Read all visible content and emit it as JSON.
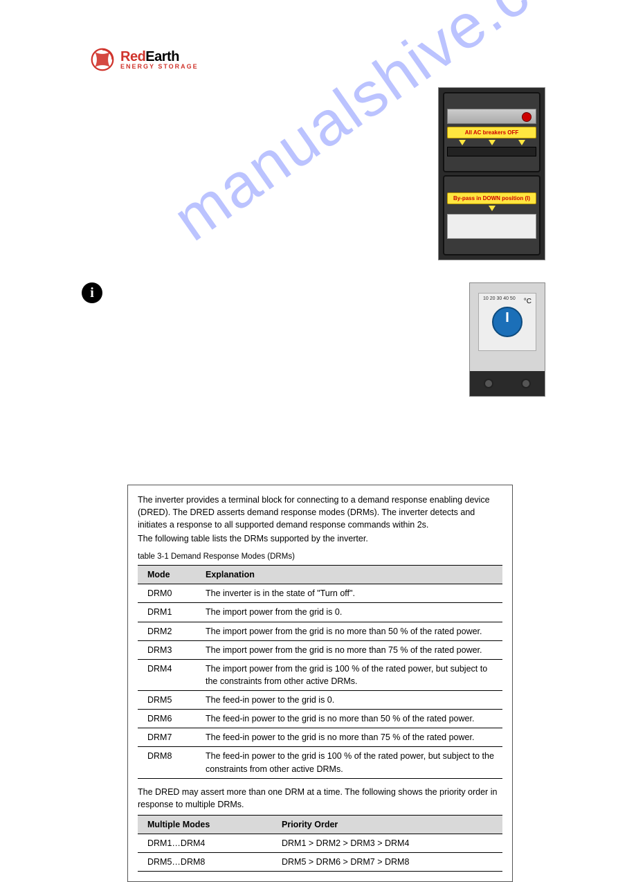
{
  "logo": {
    "brand_left": "Red",
    "brand_right": "Earth",
    "tagline": "ENERGY STORAGE"
  },
  "breaker_labels": {
    "top": "All AC breakers OFF",
    "bottom": "By-pass in DOWN position (I)"
  },
  "thermostat": {
    "unit": "°C",
    "scale": "10 20 30 40 50"
  },
  "watermark": "manualshive.com",
  "frame": {
    "intro_line1": "The inverter provides a terminal block for connecting to a demand response enabling device (DRED). The DRED asserts demand response modes (DRMs). The inverter detects and initiates a response to all supported demand response commands within 2s.",
    "intro_line2": "The following table lists the DRMs supported by the inverter.",
    "caption": "table 3-1 Demand Response Modes (DRMs)",
    "drm_table": {
      "headers": [
        "Mode",
        "Explanation"
      ],
      "rows": [
        [
          "DRM0",
          "The inverter is in the state of \"Turn off\"."
        ],
        [
          "DRM1",
          "The import power from the grid is 0."
        ],
        [
          "DRM2",
          "The import power from the grid is no more than 50 % of the rated power."
        ],
        [
          "DRM3",
          "The import power from the grid is no more than 75 % of the rated power."
        ],
        [
          "DRM4",
          "The import power from the grid is 100 % of the rated power, but subject to the constraints from other active DRMs."
        ],
        [
          "DRM5",
          "The feed-in power to the grid is 0."
        ],
        [
          "DRM6",
          "The feed-in power to the grid is no more than 50 % of the rated power."
        ],
        [
          "DRM7",
          "The feed-in power to the grid is no more than 75 % of the rated power."
        ],
        [
          "DRM8",
          "The feed-in power to the grid is 100 % of the rated power, but subject to the constraints from other active DRMs."
        ]
      ]
    },
    "between_text": "The DRED may assert more than one DRM at a time. The following shows the priority order in response to multiple DRMs.",
    "priority_table": {
      "headers": [
        "Multiple Modes",
        "Priority Order"
      ],
      "rows": [
        [
          "DRM1…DRM4",
          "DRM1 > DRM2 > DRM3 > DRM4"
        ],
        [
          "DRM5…DRM8",
          "DRM5 > DRM6 > DRM7 > DRM8"
        ]
      ]
    }
  }
}
